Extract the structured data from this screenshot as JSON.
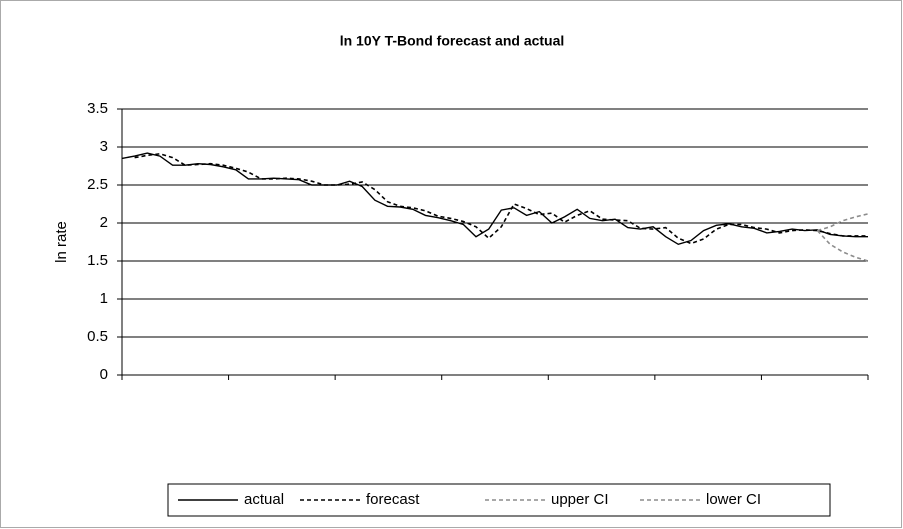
{
  "chart_data": {
    "type": "line",
    "title": "ln 10Y T-Bond forecast and actual",
    "y_label": "ln rate",
    "categories": [
      null,
      null,
      null,
      null,
      null,
      null,
      null,
      null,
      null,
      null,
      null,
      null,
      null,
      null,
      null,
      null,
      null,
      null,
      null,
      null,
      null,
      null,
      null,
      null,
      null,
      null,
      null,
      null,
      null,
      null,
      null,
      null,
      null,
      null,
      null,
      null,
      null,
      null,
      null,
      null,
      null,
      null,
      null,
      null,
      null,
      null,
      null,
      null,
      null,
      null,
      null,
      null,
      null,
      null,
      null,
      null,
      null,
      null,
      null,
      null
    ],
    "ylim": [
      0,
      3.5
    ],
    "yticks": [
      0,
      0.5,
      1,
      1.5,
      2,
      2.5,
      3,
      3.5
    ],
    "grid": true,
    "legend": "bottom",
    "series": [
      {
        "name": "actual",
        "color": "#000000",
        "dash": "solid",
        "values": [
          2.85,
          2.88,
          2.92,
          2.88,
          2.76,
          2.76,
          2.78,
          2.77,
          2.74,
          2.7,
          2.58,
          2.58,
          2.59,
          2.58,
          2.57,
          2.5,
          2.5,
          2.5,
          2.55,
          2.48,
          2.3,
          2.22,
          2.21,
          2.18,
          2.1,
          2.07,
          2.03,
          1.98,
          1.82,
          1.92,
          2.17,
          2.2,
          2.1,
          2.15,
          2.0,
          2.08,
          2.18,
          2.06,
          2.03,
          2.05,
          1.94,
          1.92,
          1.95,
          1.82,
          1.72,
          1.77,
          1.9,
          1.97,
          1.99,
          1.95,
          1.93,
          1.87,
          1.89,
          1.92,
          1.9,
          1.91,
          1.85,
          1.83,
          1.82,
          1.82
        ]
      },
      {
        "name": "forecast",
        "color": "#000000",
        "dash": "dashed",
        "values": [
          null,
          2.86,
          2.89,
          2.91,
          2.86,
          2.76,
          2.77,
          2.78,
          2.76,
          2.72,
          2.67,
          2.58,
          2.58,
          2.59,
          2.58,
          2.55,
          2.5,
          2.5,
          2.51,
          2.54,
          2.44,
          2.28,
          2.22,
          2.2,
          2.16,
          2.09,
          2.06,
          2.02,
          1.95,
          1.8,
          1.95,
          2.25,
          2.19,
          2.11,
          2.13,
          2.01,
          2.1,
          2.16,
          2.05,
          2.04,
          2.03,
          1.93,
          1.92,
          1.94,
          1.8,
          1.73,
          1.79,
          1.92,
          1.98,
          1.98,
          1.94,
          1.92,
          1.87,
          1.9,
          1.91,
          1.9,
          1.86,
          1.83,
          1.83,
          1.83
        ]
      },
      {
        "name": "upper CI",
        "color": "#8c8c8c",
        "dash": "dashed",
        "values": [
          null,
          null,
          null,
          null,
          null,
          null,
          null,
          null,
          null,
          null,
          null,
          null,
          null,
          null,
          null,
          null,
          null,
          null,
          null,
          null,
          null,
          null,
          null,
          null,
          null,
          null,
          null,
          null,
          null,
          null,
          null,
          null,
          null,
          null,
          null,
          null,
          null,
          null,
          null,
          null,
          null,
          null,
          null,
          null,
          null,
          null,
          null,
          null,
          null,
          null,
          null,
          null,
          null,
          null,
          null,
          1.9,
          1.95,
          2.03,
          2.08,
          2.12
        ]
      },
      {
        "name": "lower CI",
        "color": "#8c8c8c",
        "dash": "dashed",
        "values": [
          null,
          null,
          null,
          null,
          null,
          null,
          null,
          null,
          null,
          null,
          null,
          null,
          null,
          null,
          null,
          null,
          null,
          null,
          null,
          null,
          null,
          null,
          null,
          null,
          null,
          null,
          null,
          null,
          null,
          null,
          null,
          null,
          null,
          null,
          null,
          null,
          null,
          null,
          null,
          null,
          null,
          null,
          null,
          null,
          null,
          null,
          null,
          null,
          null,
          null,
          null,
          null,
          null,
          null,
          null,
          1.9,
          1.72,
          1.62,
          1.55,
          1.5
        ]
      }
    ]
  }
}
